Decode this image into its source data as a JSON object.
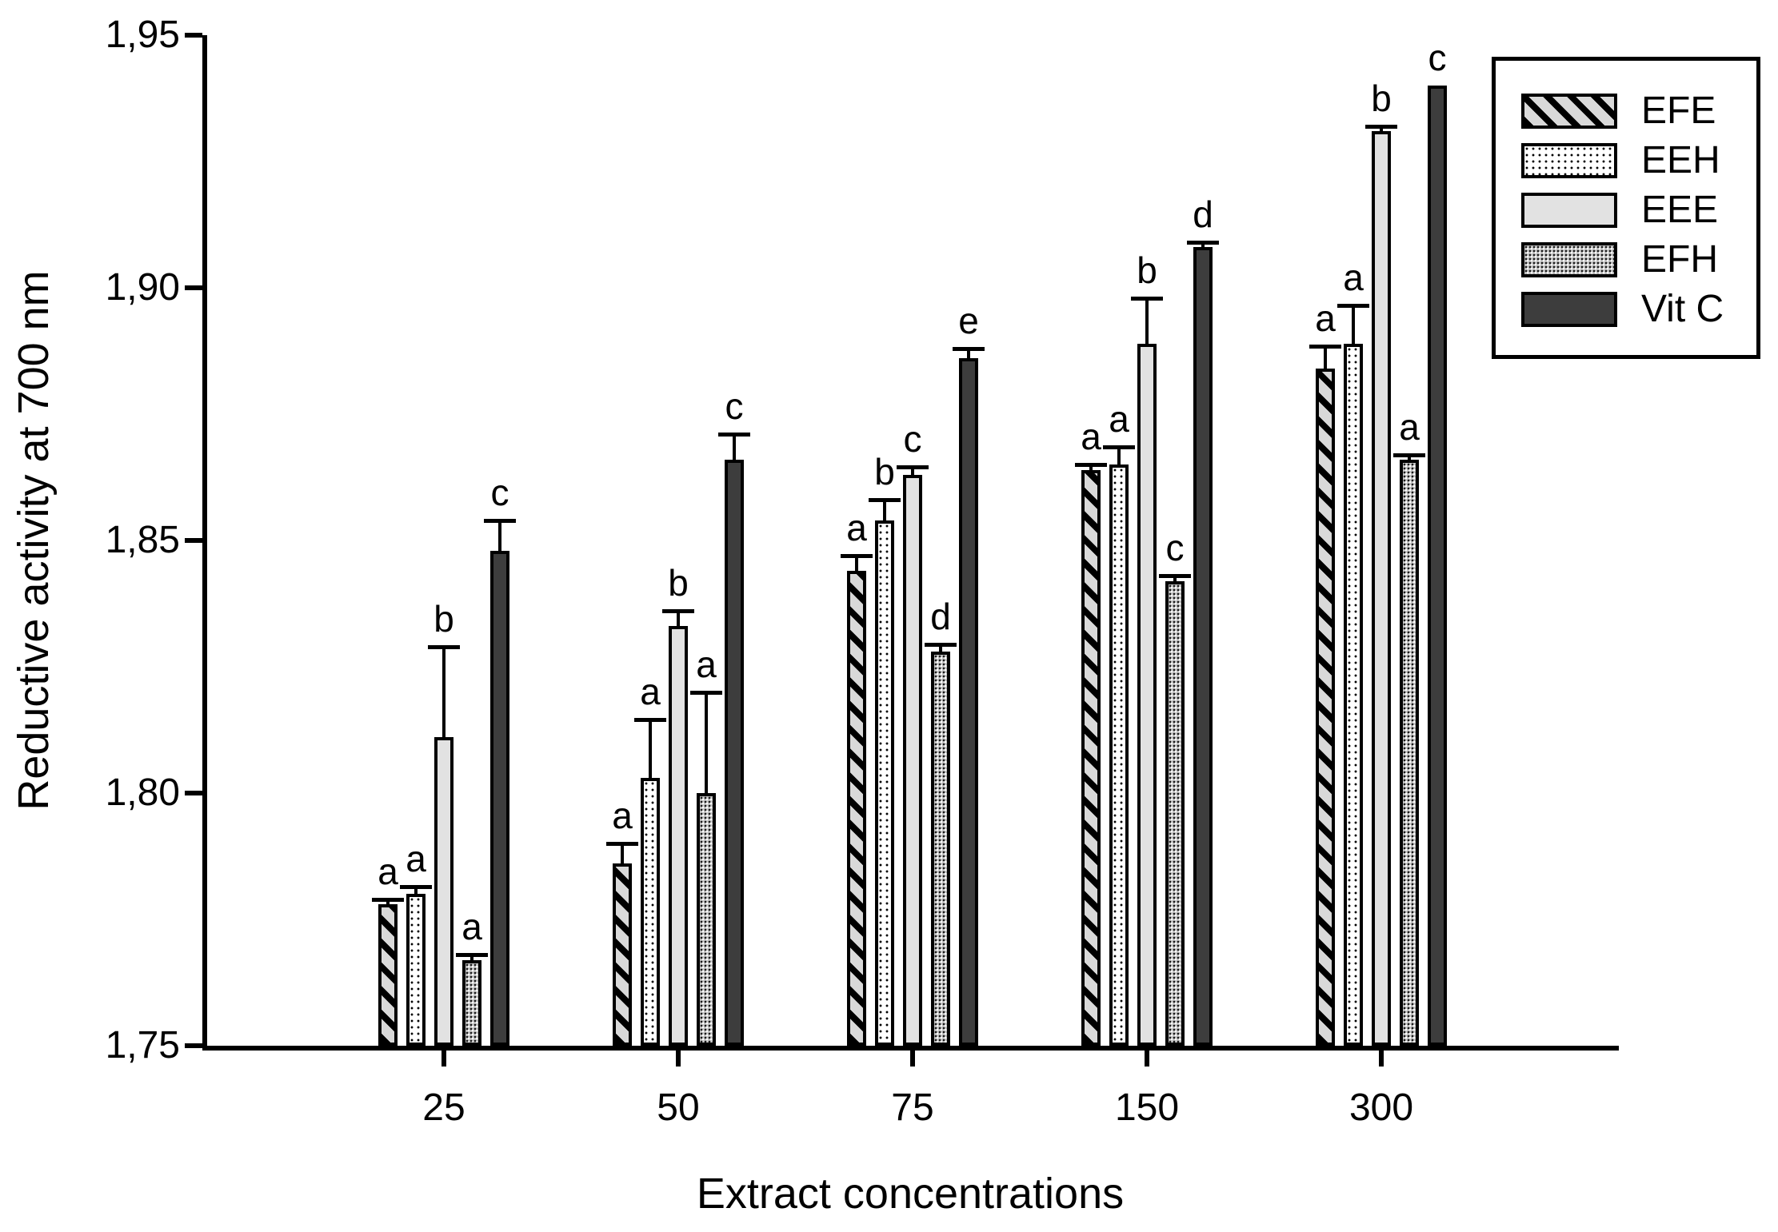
{
  "chart_data": {
    "type": "bar",
    "title": "",
    "xlabel": "Extract concentrations",
    "ylabel": "Reductive activity at 700 nm",
    "ylim": [
      1.75,
      1.95
    ],
    "yticks": [
      1.75,
      1.8,
      1.85,
      1.9,
      1.95
    ],
    "ytick_labels": [
      "1,75",
      "1,80",
      "1,85",
      "1,90",
      "1,95"
    ],
    "categories": [
      "25",
      "50",
      "75",
      "150",
      "300"
    ],
    "grid": false,
    "legend_position": "top-right",
    "decimal_separator": "comma",
    "error_bars": "upper-only",
    "series": [
      {
        "name": "EFE",
        "pattern": "diagonal-hatch",
        "fill": "#d9d9d9",
        "values": [
          1.778,
          1.786,
          1.844,
          1.864,
          1.884
        ],
        "errors": [
          0.001,
          0.004,
          0.003,
          0.001,
          0.0045
        ],
        "letters": [
          "a",
          "a",
          "a",
          "a",
          "a"
        ]
      },
      {
        "name": "EEH",
        "pattern": "fine-dots",
        "fill": "#ffffff",
        "values": [
          1.78,
          1.803,
          1.854,
          1.865,
          1.889
        ],
        "errors": [
          0.0015,
          0.0115,
          0.004,
          0.0035,
          0.0075
        ],
        "letters": [
          "a",
          "a",
          "b",
          "a",
          "a"
        ]
      },
      {
        "name": "EEE",
        "pattern": "solid-light-gray",
        "fill": "#e2e2e2",
        "values": [
          1.811,
          1.833,
          1.863,
          1.889,
          1.931
        ],
        "errors": [
          0.018,
          0.003,
          0.0015,
          0.009,
          0.001
        ],
        "letters": [
          "b",
          "b",
          "c",
          "b",
          "b"
        ]
      },
      {
        "name": "EFH",
        "pattern": "coarse-stipple",
        "fill": "#c9c9c9",
        "values": [
          1.767,
          1.8,
          1.828,
          1.842,
          1.866
        ],
        "errors": [
          0.001,
          0.02,
          0.0015,
          0.001,
          0.001
        ],
        "letters": [
          "a",
          "a",
          "d",
          "c",
          "a"
        ]
      },
      {
        "name": "Vit C",
        "pattern": "solid-dark-gray",
        "fill": "#3d3d3d",
        "values": [
          1.848,
          1.866,
          1.886,
          1.908,
          1.94
        ],
        "errors": [
          0.006,
          0.005,
          0.002,
          0.001,
          null
        ],
        "letters": [
          "c",
          "c",
          "e",
          "d",
          "c"
        ]
      }
    ]
  },
  "legend": {
    "entries": [
      "EFE",
      "EEH",
      "EEE",
      "EFH",
      "Vit C"
    ]
  },
  "colors": {
    "axis": "#000000",
    "bar_border": "#000000",
    "background": "#ffffff"
  }
}
